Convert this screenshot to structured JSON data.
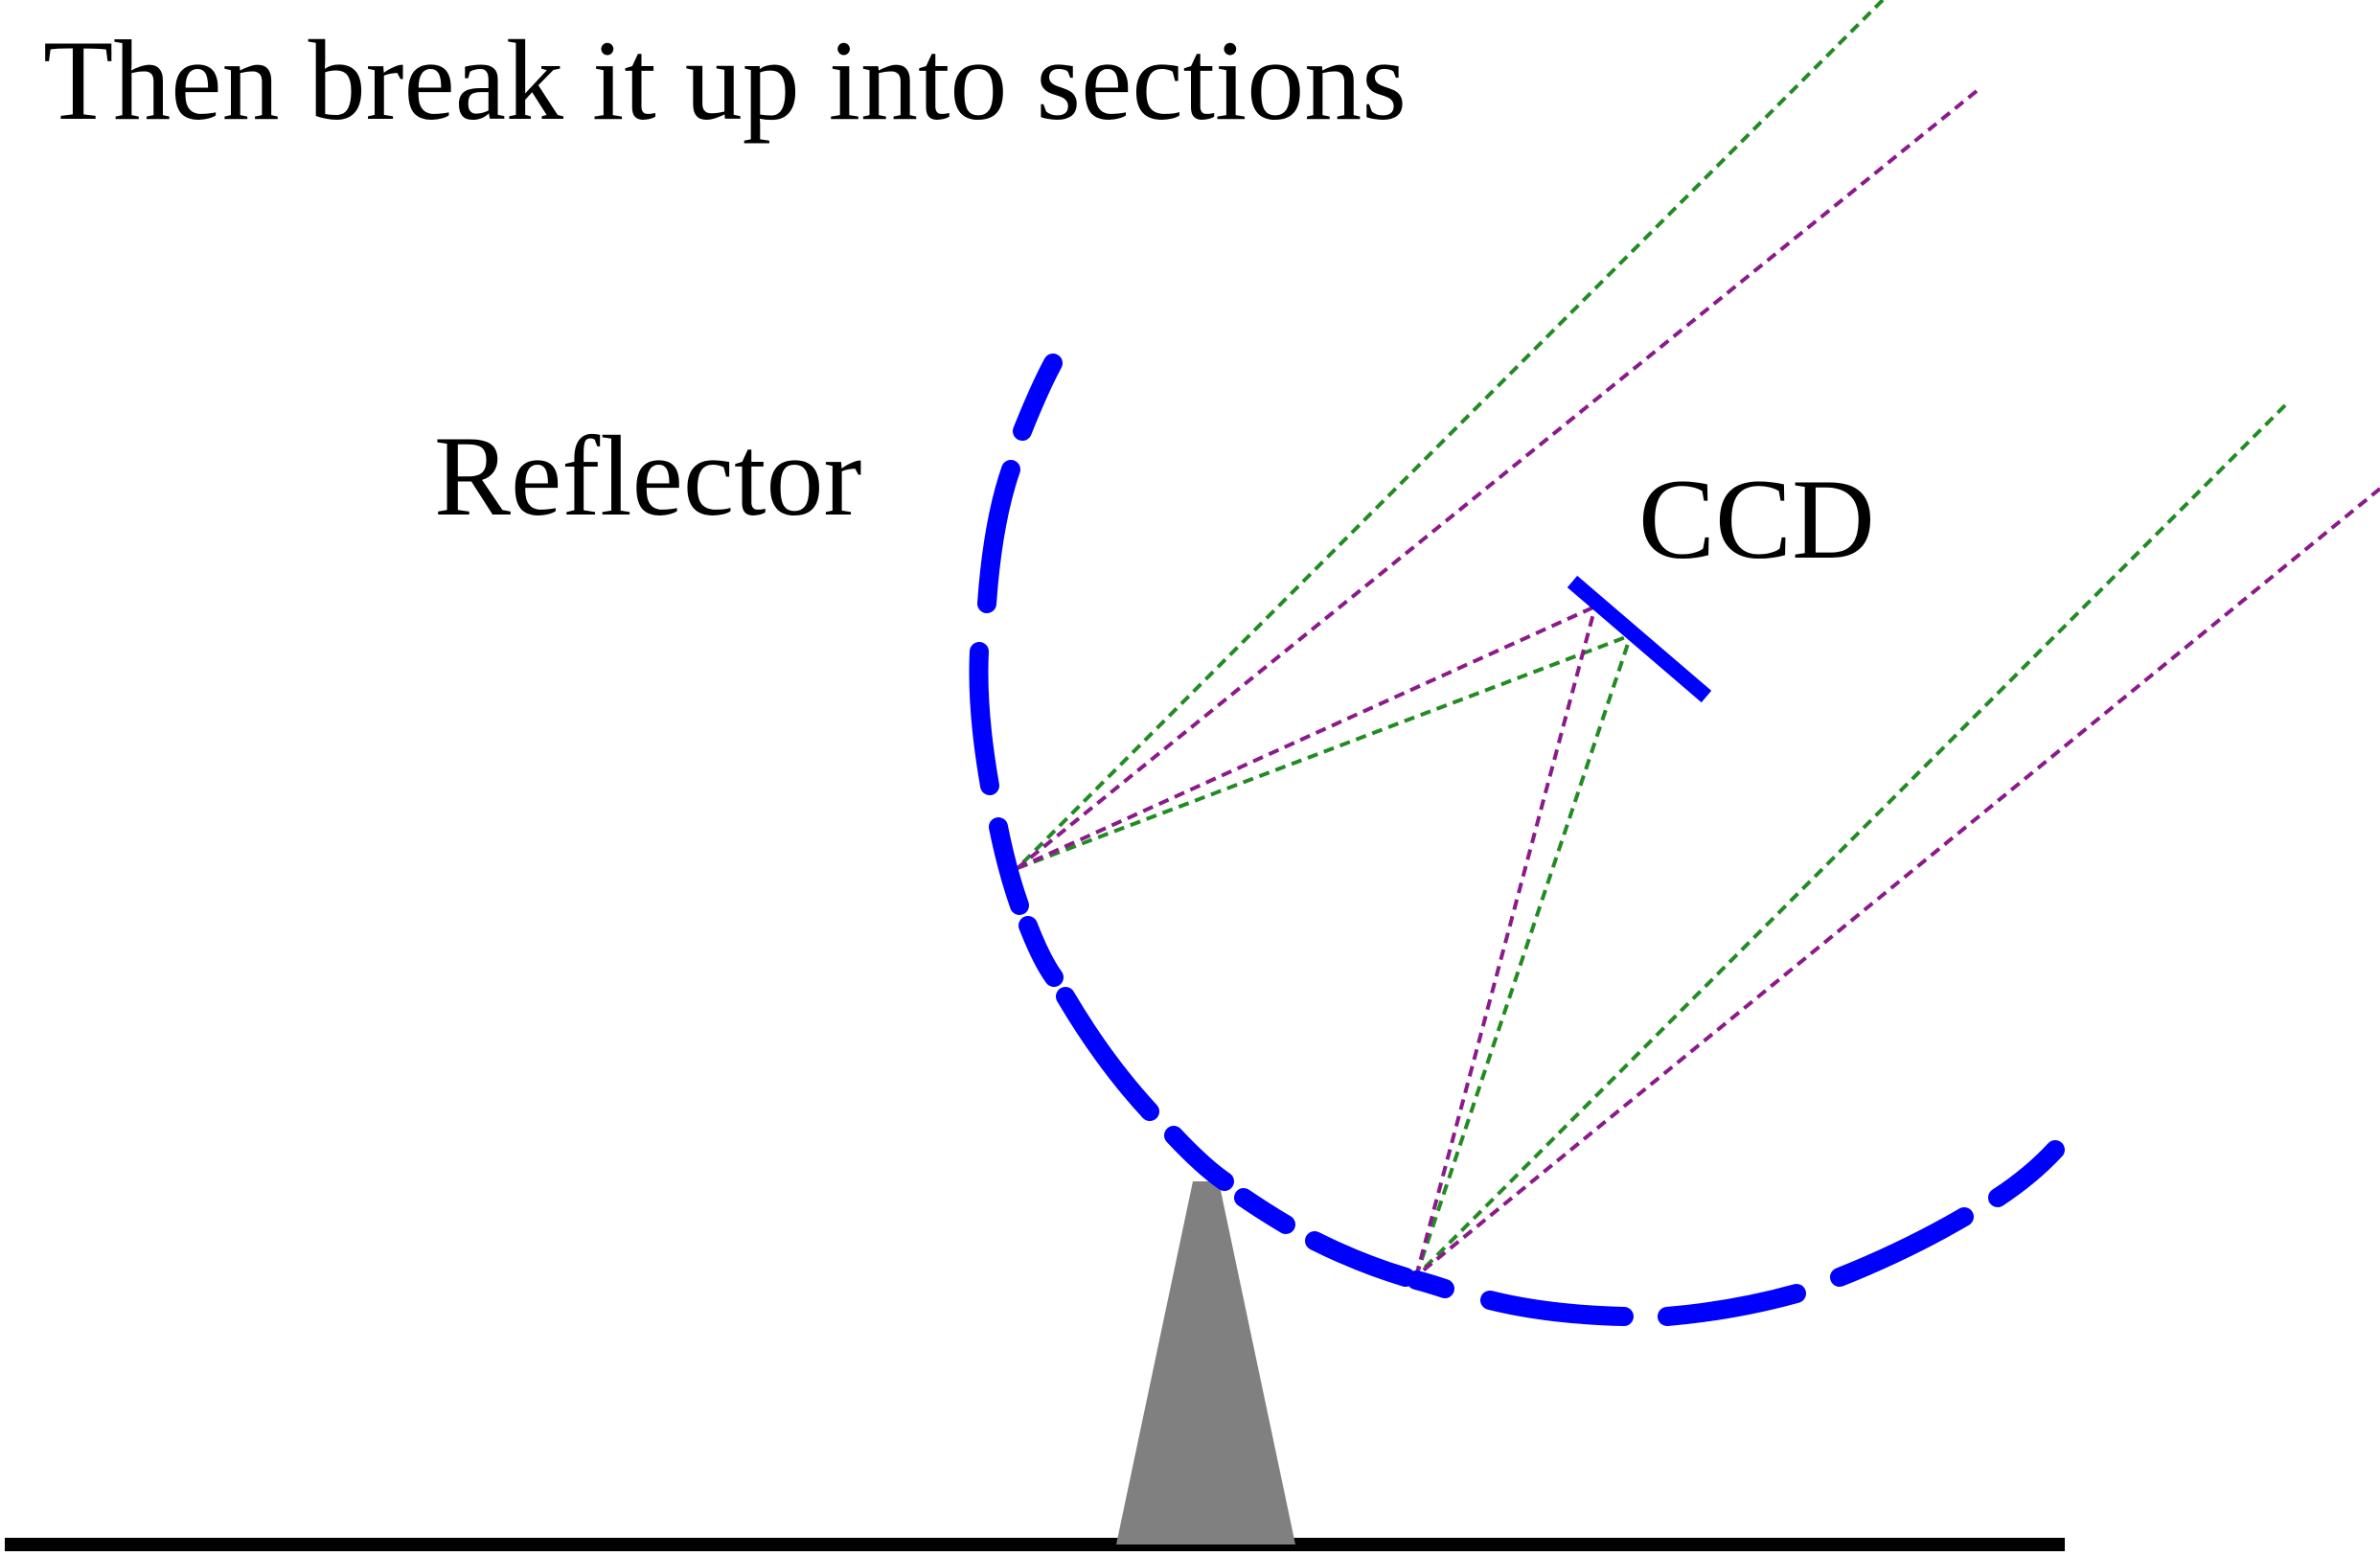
{
  "title": "Then break it up into sections",
  "labels": {
    "reflector": "Reflector",
    "ccd": "CCD"
  },
  "colors": {
    "background": "#ffffff",
    "reflector": "#0000ff",
    "ccd": "#0000ff",
    "ray_green": "#228b22",
    "ray_purple": "#8b1a8b",
    "stand": "#808080",
    "ground": "#000000",
    "text": "#000000"
  }
}
